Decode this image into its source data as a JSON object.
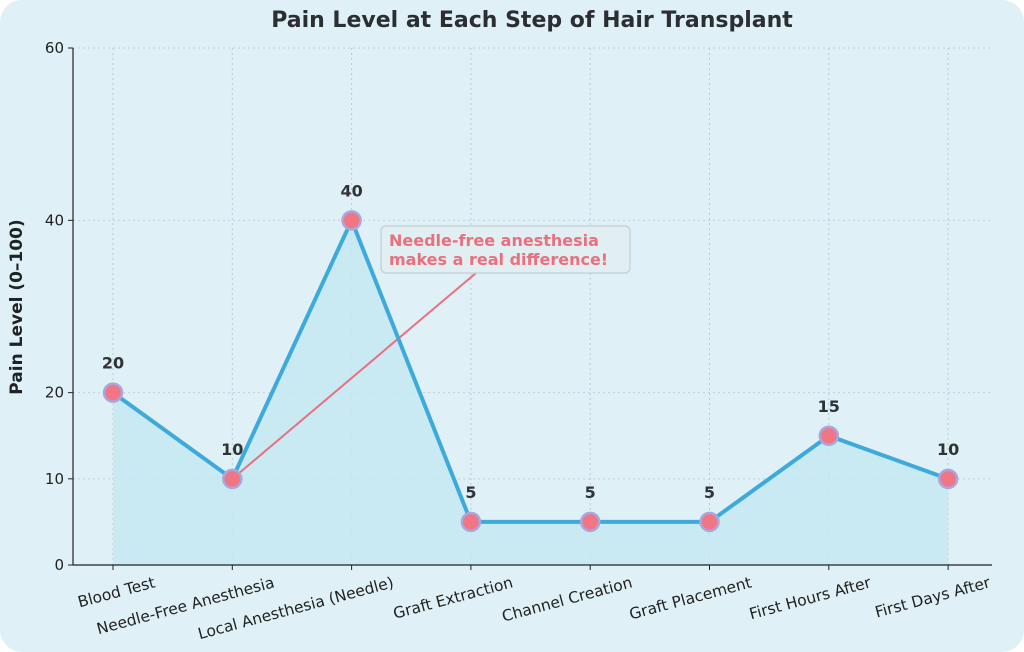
{
  "chart_data": {
    "type": "line",
    "title": "Pain Level at Each Step of Hair Transplant",
    "xlabel": "",
    "ylabel": "Pain Level (0–100)",
    "ylim": [
      0,
      60
    ],
    "yticks": [
      "0",
      "10",
      "20",
      "40",
      "60"
    ],
    "categories": [
      "Blood Test",
      "Needle-Free Anesthesia",
      "Local Anesthesia (Needle)",
      "Graft Extraction",
      "Channel Creation",
      "Graft Placement",
      "First Hours After",
      "First Days After"
    ],
    "series": [
      {
        "values": [
          20,
          10,
          40,
          5,
          5,
          5,
          15,
          10
        ]
      }
    ],
    "data_labels": [
      "20",
      "10",
      "40",
      "5",
      "5",
      "5",
      "15",
      "10"
    ],
    "grid": true,
    "fill_under_line": true,
    "annotation": {
      "line1": "Needle-free anesthesia",
      "line2": "makes a real difference!",
      "points_to_category": "Needle-Free Anesthesia"
    },
    "colors": {
      "line": "#3eaadb",
      "marker_fill": "#f07585",
      "marker_edge": "#a9a7dc",
      "area_fill": "#c5e7f2",
      "annotation": "#e8707f",
      "background": "#dff1f6"
    }
  }
}
